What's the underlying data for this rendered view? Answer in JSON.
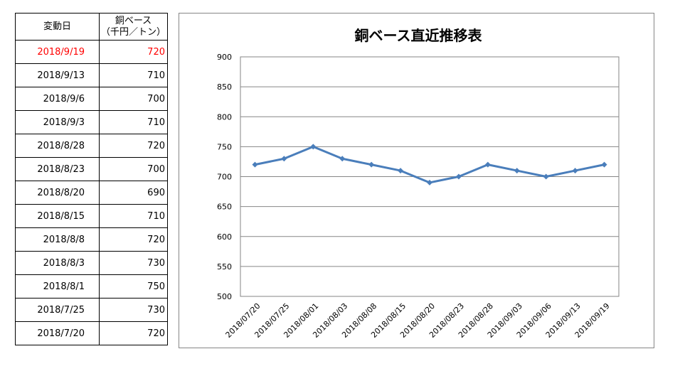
{
  "table": {
    "headers": {
      "date": "変動日",
      "value_line1": "銅ベース",
      "value_line2": "（千円／トン）"
    },
    "rows": [
      {
        "date": "2018/9/19",
        "value": "720",
        "highlight": true
      },
      {
        "date": "2018/9/13",
        "value": "710"
      },
      {
        "date": "2018/9/6",
        "value": "700"
      },
      {
        "date": "2018/9/3",
        "value": "710"
      },
      {
        "date": "2018/8/28",
        "value": "720"
      },
      {
        "date": "2018/8/23",
        "value": "700"
      },
      {
        "date": "2018/8/20",
        "value": "690"
      },
      {
        "date": "2018/8/15",
        "value": "710"
      },
      {
        "date": "2018/8/8",
        "value": "720"
      },
      {
        "date": "2018/8/3",
        "value": "730"
      },
      {
        "date": "2018/8/1",
        "value": "750"
      },
      {
        "date": "2018/7/25",
        "value": "730"
      },
      {
        "date": "2018/7/20",
        "value": "720"
      }
    ],
    "highlight_color": "#ff0000"
  },
  "chart_data": {
    "type": "line",
    "title": "銅ベース直近推移表",
    "categories": [
      "2018/07/20",
      "2018/07/25",
      "2018/08/01",
      "2018/08/03",
      "2018/08/08",
      "2018/08/15",
      "2018/08/20",
      "2018/08/23",
      "2018/08/28",
      "2018/09/03",
      "2018/09/06",
      "2018/09/13",
      "2018/09/19"
    ],
    "series": [
      {
        "values": [
          720,
          730,
          750,
          730,
          720,
          710,
          690,
          700,
          720,
          710,
          700,
          710,
          720
        ],
        "color": "#4a7ebb"
      }
    ],
    "ylim": [
      500,
      900
    ],
    "yticks": [
      500,
      550,
      600,
      650,
      700,
      750,
      800,
      850,
      900
    ],
    "grid": true,
    "legend": "none",
    "marker": "diamond"
  }
}
